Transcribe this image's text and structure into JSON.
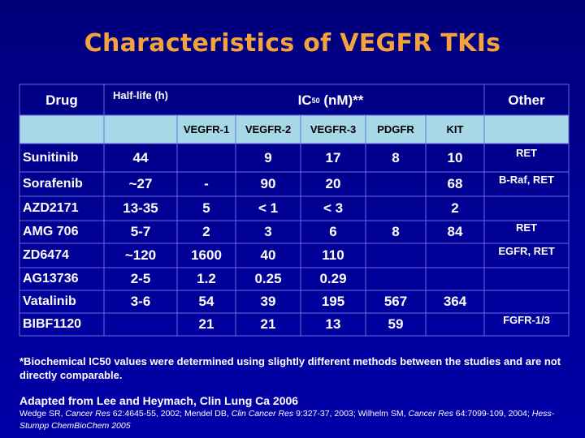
{
  "title": "Characteristics of VEGFR TKIs",
  "header": {
    "drug": "Drug",
    "half_life": "Half-life (h)",
    "ic50_prefix": "IC",
    "ic50_sub": "50",
    "ic50_suffix": " (nM)**",
    "other": "Other",
    "targets": [
      "VEGFR-1",
      "VEGFR-2",
      "VEGFR-3",
      "PDGFR",
      "KIT"
    ]
  },
  "rows": [
    {
      "drug": "Sunitinib",
      "half_life": "44",
      "vegfr1": "",
      "vegfr2": "9",
      "vegfr3": "17",
      "pdgfr": "8",
      "kit": "10",
      "other": "RET"
    },
    {
      "drug": "Sorafenib",
      "half_life": "~27",
      "vegfr1": "-",
      "vegfr2": "90",
      "vegfr3": "20",
      "pdgfr": "",
      "kit": "68",
      "other": "B-Raf, RET"
    },
    {
      "drug": "AZD2171",
      "half_life": "13-35",
      "vegfr1": "5",
      "vegfr2": "< 1",
      "vegfr3": "< 3",
      "pdgfr": "",
      "kit": "2",
      "other": ""
    },
    {
      "drug": "AMG 706",
      "half_life": "5-7",
      "vegfr1": "2",
      "vegfr2": "3",
      "vegfr3": "6",
      "pdgfr": "8",
      "kit": "84",
      "other": "RET"
    },
    {
      "drug": "ZD6474",
      "half_life": "~120",
      "vegfr1": "1600",
      "vegfr2": "40",
      "vegfr3": "110",
      "pdgfr": "",
      "kit": "",
      "other": "EGFR, RET"
    },
    {
      "drug": "AG13736",
      "half_life": "2-5",
      "vegfr1": "1.2",
      "vegfr2": "0.25",
      "vegfr3": "0.29",
      "pdgfr": "",
      "kit": "",
      "other": ""
    },
    {
      "drug": "Vatalinib",
      "half_life": "3-6",
      "vegfr1": "54",
      "vegfr2": "39",
      "vegfr3": "195",
      "pdgfr": "567",
      "kit": "364",
      "other": ""
    },
    {
      "drug": "BIBF1120",
      "half_life": "",
      "vegfr1": "21",
      "vegfr2": "21",
      "vegfr3": "13",
      "pdgfr": "59",
      "kit": "",
      "other": "FGFR-1/3"
    }
  ],
  "footnote": "*Biochemical IC50 values were determined using slightly different methods between the studies and are not directly comparable.",
  "source": "Adapted from Lee and Heymach, Clin Lung Ca 2006",
  "references": {
    "r1_a": "Wedge SR, ",
    "r1_b": "Cancer Res",
    "r1_c": " 62:4645-55, 2002; Mendel DB, ",
    "r2_b": "Clin Cancer Res",
    "r2_c": " 9:327-37, 2003; Wilhelm SM, ",
    "r3_b": "Cancer Res",
    "r3_c": " 64:7099-109, 2004; ",
    "r4": "Hess-Stumpp ChemBioChem 2005"
  },
  "colors": {
    "background": "#00008f",
    "title": "#f4a23c",
    "header_band": "#a6d8e8",
    "grid_line": "#6a6adf"
  }
}
